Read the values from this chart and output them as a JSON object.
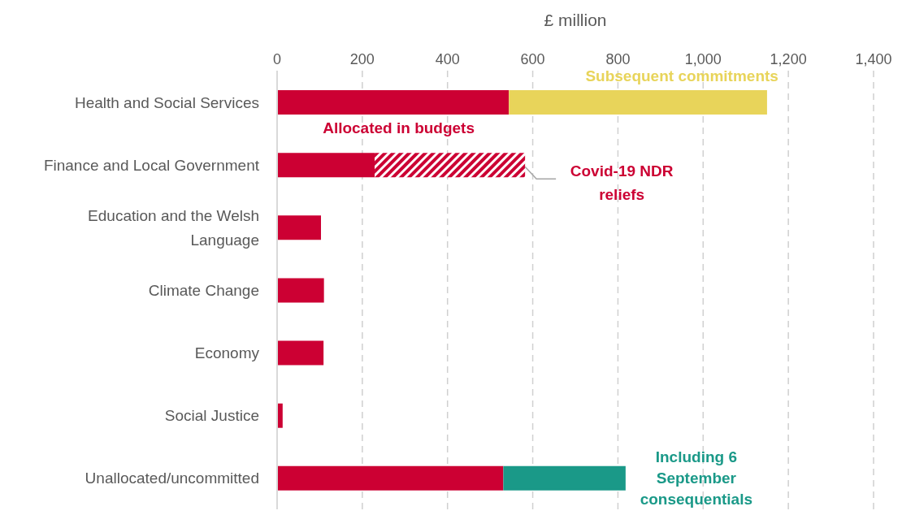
{
  "chart_data": {
    "type": "bar",
    "orientation": "horizontal",
    "stacked": true,
    "xlabel": "£ million",
    "categories": [
      "Health and Social Services",
      "Finance and Local Government",
      "Education and the Welsh Language",
      "Climate Change",
      "Economy",
      "Social Justice",
      "Unallocated/uncommitted"
    ],
    "series": [
      {
        "name": "Allocated in budgets",
        "color": "#cc0033",
        "values": [
          544,
          229,
          103,
          110,
          109,
          13,
          531
        ]
      },
      {
        "name": "Covid-19 NDR reliefs",
        "color": "#cc0033",
        "values": [
          null,
          353,
          null,
          null,
          null,
          null,
          null
        ]
      },
      {
        "name": "Subsequent commitments",
        "color": "#e8d45a",
        "values": [
          606,
          null,
          null,
          null,
          null,
          null,
          null
        ]
      },
      {
        "name": "Including 6 September consequentials",
        "color": "#1a9988",
        "values": [
          null,
          null,
          null,
          null,
          null,
          null,
          287
        ]
      }
    ],
    "xlim": [
      0,
      1400
    ],
    "xticks": [
      0,
      {
        "value": 200,
        "label": "200"
      },
      {
        "value": 400,
        "label": "400"
      },
      {
        "value": 600,
        "label": "600"
      },
      {
        "value": 800,
        "label": "800"
      },
      {
        "value": 1000,
        "label": "1,000"
      },
      {
        "value": 1200,
        "label": "1,200"
      },
      {
        "value": 1400,
        "label": "1,400"
      }
    ],
    "grid": "x",
    "legend": false
  }
}
